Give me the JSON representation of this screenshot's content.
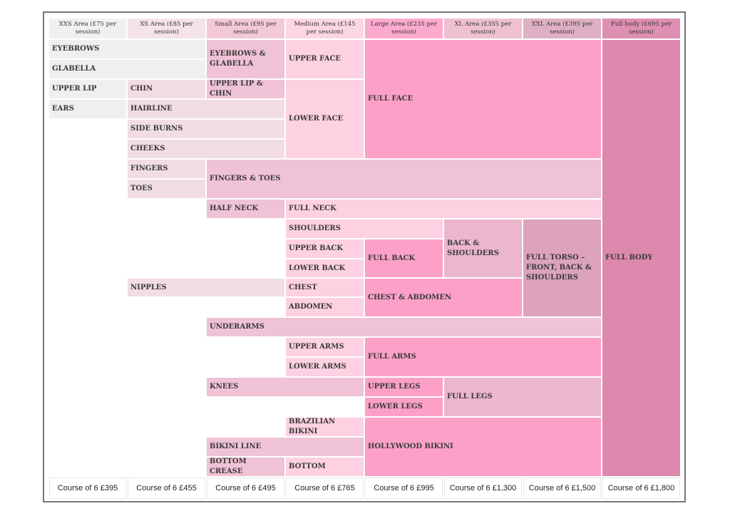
{
  "headers": [
    "XXS Area (£75 per session)",
    "XS Area (£85 per session)",
    "Small Area (£95 per session)",
    "Medium Area (£145 per session)",
    "Large Area (£235 per session)",
    "XL Area (£355 per session)",
    "XXL Area (£395 per session)",
    "Full body (£695 per session)"
  ],
  "areas": {
    "eyebrows": "EYEBROWS",
    "glabella": "GLABELLA",
    "upper_lip": "UPPER LIP",
    "ears": "EARS",
    "chin": "CHIN",
    "hairline": "HAIRLINE",
    "side_burns": "SIDE BURNS",
    "cheeks": "CHEEKS",
    "fingers": "FINGERS",
    "toes": "TOES",
    "nipples": "NIPPLES",
    "eyebrows_glabella": "EYEBROWS & GLABELLA",
    "upper_lip_chin": "UPPER LIP & CHIN",
    "fingers_toes": "FINGERS & TOES",
    "half_neck": "HALF NECK",
    "underarms": "UNDERARMS",
    "knees": "KNEES",
    "bikini_line": "BIKINI LINE",
    "bottom_crease": "BOTTOM CREASE",
    "upper_face": "UPPER FACE",
    "lower_face": "LOWER FACE",
    "full_neck": "FULL NECK",
    "shoulders": "SHOULDERS",
    "upper_back": "UPPER BACK",
    "lower_back": "LOWER BACK",
    "chest": "CHEST",
    "abdomen": "ABDOMEN",
    "upper_arms": "UPPER ARMS",
    "lower_arms": "LOWER ARMS",
    "brazilian_bikini": "BRAZILIAN BIKINI",
    "bottom": "BOTTOM",
    "full_face": "FULL FACE",
    "full_back": "FULL BACK",
    "chest_abdomen": "CHEST & ABDOMEN",
    "full_arms": "FULL ARMS",
    "upper_legs": "UPPER LEGS",
    "lower_legs": "LOWER LEGS",
    "hollywood_bikini": "HOLLYWOOD BIKINI",
    "back_shoulders": "BACK & SHOULDERS",
    "full_legs": "FULL LEGS",
    "full_torso": "FULL TORSO – FRONT, BACK & SHOULDERS",
    "full_body": "FULL BODY"
  },
  "prices": [
    "Course of 6 £395",
    "Course of 6 £455",
    "Course of 6 £495",
    "Course of 6 £765",
    "Course of 6 £995",
    "Course of 6 £1,300",
    "Course of 6 £1,500",
    "Course of 6 £1,800"
  ],
  "colors": {
    "xxs": "#efefef",
    "xs": "#f2dde4",
    "small": "#f0c2d5",
    "medium": "#fdd0e2",
    "large": "#fca0c8",
    "xl": "#ecb6cc",
    "xxl": "#dca3ba",
    "full_body": "#dd88ad",
    "header_xxs": "#f0f0f0",
    "header_xs": "#f4e3e9",
    "header_small": "#f3c9da",
    "header_medium": "#fdd6e5",
    "header_large": "#fcaace",
    "header_xl": "#eec0d2",
    "header_xxl": "#dfb0c3",
    "header_full": "#de8fb2"
  }
}
